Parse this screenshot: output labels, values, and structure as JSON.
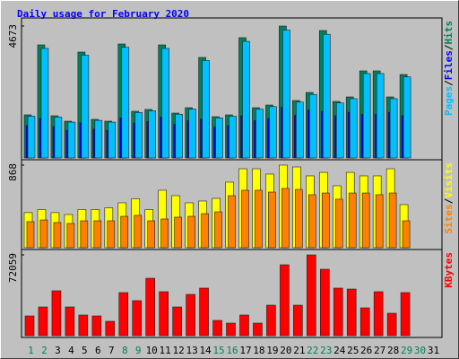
{
  "title": "Daily usage for February 2020",
  "legend_separator": "/",
  "chart_data": [
    {
      "type": "bar",
      "series": [
        {
          "name": "Hits",
          "color": "#00805c",
          "values": [
            1526,
            4005,
            1494,
            1303,
            3751,
            1367,
            1303,
            4037,
            1653,
            1717,
            4005,
            1589,
            1780,
            3560,
            1462,
            1526,
            4260,
            1780,
            1875,
            4673,
            2034,
            2320,
            4514,
            2003,
            2162,
            3084,
            3084,
            2162,
            2956,
            null,
            null
          ]
        },
        {
          "name": "Files",
          "color": "#0000ff",
          "values": [
            1150,
            1400,
            1120,
            980,
            1250,
            1030,
            980,
            1420,
            1240,
            1290,
            1450,
            1190,
            1330,
            1380,
            1100,
            1150,
            1500,
            1330,
            1400,
            1800,
            1520,
            1700,
            1650,
            1500,
            1620,
            1550,
            1550,
            1620,
            1500,
            null,
            null
          ]
        },
        {
          "name": "Pages",
          "color": "#00c0ff",
          "values": [
            1480,
            3880,
            1450,
            1270,
            3640,
            1330,
            1270,
            3920,
            1610,
            1670,
            3880,
            1550,
            1730,
            3450,
            1420,
            1480,
            4130,
            1730,
            1820,
            4530,
            1980,
            2250,
            4380,
            1950,
            2100,
            2990,
            2990,
            2100,
            2870,
            null,
            null
          ]
        }
      ],
      "ylim": [
        0,
        4673
      ],
      "yticks": [
        4673
      ]
    },
    {
      "type": "bar",
      "series": [
        {
          "name": "Visits",
          "color": "#ffff00",
          "values": [
            369,
            401,
            369,
            349,
            401,
            401,
            420,
            472,
            514,
            401,
            604,
            547,
            472,
            491,
            519,
            689,
            830,
            830,
            774,
            868,
            849,
            755,
            792,
            651,
            792,
            755,
            755,
            830,
            453,
            null,
            null
          ]
        },
        {
          "name": "Sites",
          "color": "#ff8000",
          "values": [
            274,
            292,
            264,
            255,
            283,
            283,
            283,
            330,
            340,
            283,
            302,
            321,
            330,
            358,
            377,
            547,
            604,
            604,
            585,
            623,
            613,
            557,
            575,
            510,
            575,
            575,
            557,
            575,
            283,
            null,
            null
          ]
        }
      ],
      "ylim": [
        0,
        868
      ],
      "yticks": [
        868
      ]
    },
    {
      "type": "bar",
      "series": [
        {
          "name": "KBytes",
          "color": "#ff0000",
          "values": [
            17615,
            25621,
            40032,
            25621,
            18416,
            17615,
            12810,
            38431,
            31226,
            51240,
            39231,
            25621,
            36830,
            42434,
            13611,
            11208,
            18416,
            11208,
            27220,
            63252,
            27220,
            72059,
            59248,
            42434,
            41633,
            24820,
            39231,
            20016,
            38431,
            null,
            null
          ]
        }
      ],
      "ylim": [
        0,
        72059
      ],
      "yticks": [
        72059
      ],
      "categories": [
        1,
        2,
        3,
        4,
        5,
        6,
        7,
        8,
        9,
        10,
        11,
        12,
        13,
        14,
        15,
        16,
        17,
        18,
        19,
        20,
        21,
        22,
        23,
        24,
        25,
        26,
        27,
        28,
        29,
        30,
        31
      ],
      "highlight_categories": [
        1,
        2,
        8,
        9,
        15,
        16,
        22,
        23,
        29,
        30
      ],
      "highlight_color": "#00805c"
    }
  ]
}
